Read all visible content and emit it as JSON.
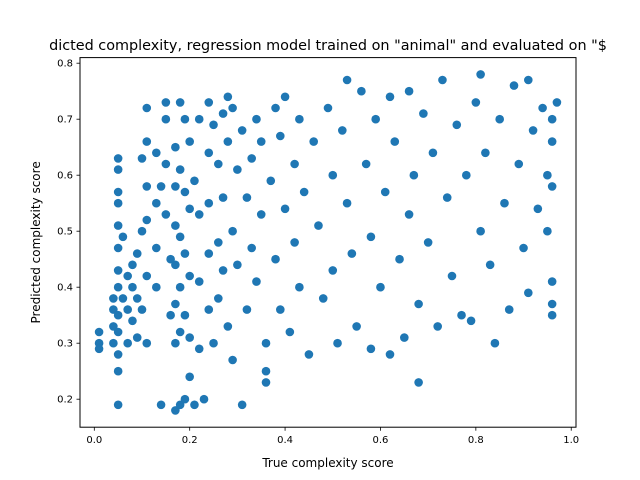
{
  "chart_data": {
    "type": "scatter",
    "title": "dicted complexity, regression model trained on \"animal\" and evaluated on \"$",
    "xlabel": "True complexity score",
    "ylabel": "Predicted complexity score",
    "xlim": [
      -0.03,
      1.01
    ],
    "ylim": [
      0.15,
      0.81
    ],
    "xticks": [
      0.0,
      0.2,
      0.4,
      0.6,
      0.8,
      1.0
    ],
    "xtick_labels": [
      "0.0",
      "0.2",
      "0.4",
      "0.6",
      "0.8",
      "1.0"
    ],
    "yticks": [
      0.2,
      0.3,
      0.4,
      0.5,
      0.6,
      0.7,
      0.8
    ],
    "ytick_labels": [
      "0.2",
      "0.3",
      "0.4",
      "0.5",
      "0.6",
      "0.7",
      "0.8"
    ],
    "grid": false,
    "legend": false,
    "marker_color": "#1f77b4",
    "series": [
      {
        "points": [
          [
            0.01,
            0.32
          ],
          [
            0.01,
            0.3
          ],
          [
            0.01,
            0.29
          ],
          [
            0.04,
            0.38
          ],
          [
            0.04,
            0.36
          ],
          [
            0.04,
            0.33
          ],
          [
            0.04,
            0.3
          ],
          [
            0.05,
            0.63
          ],
          [
            0.05,
            0.61
          ],
          [
            0.05,
            0.57
          ],
          [
            0.05,
            0.55
          ],
          [
            0.05,
            0.51
          ],
          [
            0.05,
            0.47
          ],
          [
            0.05,
            0.43
          ],
          [
            0.05,
            0.4
          ],
          [
            0.05,
            0.35
          ],
          [
            0.05,
            0.32
          ],
          [
            0.05,
            0.28
          ],
          [
            0.05,
            0.25
          ],
          [
            0.05,
            0.19
          ],
          [
            0.06,
            0.49
          ],
          [
            0.06,
            0.38
          ],
          [
            0.07,
            0.42
          ],
          [
            0.07,
            0.36
          ],
          [
            0.07,
            0.3
          ],
          [
            0.08,
            0.44
          ],
          [
            0.08,
            0.4
          ],
          [
            0.08,
            0.34
          ],
          [
            0.09,
            0.38
          ],
          [
            0.09,
            0.31
          ],
          [
            0.09,
            0.46
          ],
          [
            0.1,
            0.63
          ],
          [
            0.1,
            0.5
          ],
          [
            0.1,
            0.36
          ],
          [
            0.11,
            0.72
          ],
          [
            0.11,
            0.66
          ],
          [
            0.11,
            0.58
          ],
          [
            0.11,
            0.52
          ],
          [
            0.11,
            0.42
          ],
          [
            0.11,
            0.3
          ],
          [
            0.13,
            0.64
          ],
          [
            0.13,
            0.55
          ],
          [
            0.13,
            0.47
          ],
          [
            0.13,
            0.4
          ],
          [
            0.14,
            0.19
          ],
          [
            0.14,
            0.58
          ],
          [
            0.15,
            0.73
          ],
          [
            0.15,
            0.7
          ],
          [
            0.15,
            0.62
          ],
          [
            0.15,
            0.53
          ],
          [
            0.16,
            0.45
          ],
          [
            0.16,
            0.35
          ],
          [
            0.17,
            0.65
          ],
          [
            0.17,
            0.58
          ],
          [
            0.17,
            0.51
          ],
          [
            0.17,
            0.44
          ],
          [
            0.17,
            0.37
          ],
          [
            0.17,
            0.3
          ],
          [
            0.17,
            0.18
          ],
          [
            0.18,
            0.73
          ],
          [
            0.18,
            0.61
          ],
          [
            0.18,
            0.49
          ],
          [
            0.18,
            0.4
          ],
          [
            0.18,
            0.32
          ],
          [
            0.18,
            0.19
          ],
          [
            0.19,
            0.7
          ],
          [
            0.19,
            0.57
          ],
          [
            0.19,
            0.46
          ],
          [
            0.19,
            0.35
          ],
          [
            0.19,
            0.2
          ],
          [
            0.2,
            0.66
          ],
          [
            0.2,
            0.54
          ],
          [
            0.2,
            0.42
          ],
          [
            0.2,
            0.31
          ],
          [
            0.2,
            0.24
          ],
          [
            0.21,
            0.59
          ],
          [
            0.21,
            0.19
          ],
          [
            0.22,
            0.7
          ],
          [
            0.22,
            0.53
          ],
          [
            0.22,
            0.41
          ],
          [
            0.22,
            0.29
          ],
          [
            0.23,
            0.2
          ],
          [
            0.24,
            0.73
          ],
          [
            0.24,
            0.64
          ],
          [
            0.24,
            0.55
          ],
          [
            0.24,
            0.46
          ],
          [
            0.24,
            0.36
          ],
          [
            0.25,
            0.69
          ],
          [
            0.25,
            0.3
          ],
          [
            0.26,
            0.62
          ],
          [
            0.26,
            0.48
          ],
          [
            0.26,
            0.38
          ],
          [
            0.27,
            0.71
          ],
          [
            0.27,
            0.56
          ],
          [
            0.27,
            0.43
          ],
          [
            0.28,
            0.74
          ],
          [
            0.28,
            0.66
          ],
          [
            0.28,
            0.33
          ],
          [
            0.29,
            0.72
          ],
          [
            0.29,
            0.5
          ],
          [
            0.29,
            0.27
          ],
          [
            0.3,
            0.61
          ],
          [
            0.3,
            0.44
          ],
          [
            0.31,
            0.19
          ],
          [
            0.31,
            0.68
          ],
          [
            0.32,
            0.56
          ],
          [
            0.32,
            0.36
          ],
          [
            0.33,
            0.63
          ],
          [
            0.33,
            0.47
          ],
          [
            0.34,
            0.7
          ],
          [
            0.34,
            0.41
          ],
          [
            0.35,
            0.66
          ],
          [
            0.35,
            0.53
          ],
          [
            0.36,
            0.3
          ],
          [
            0.36,
            0.25
          ],
          [
            0.36,
            0.23
          ],
          [
            0.37,
            0.59
          ],
          [
            0.38,
            0.72
          ],
          [
            0.38,
            0.45
          ],
          [
            0.39,
            0.67
          ],
          [
            0.39,
            0.36
          ],
          [
            0.4,
            0.74
          ],
          [
            0.4,
            0.54
          ],
          [
            0.41,
            0.32
          ],
          [
            0.42,
            0.62
          ],
          [
            0.42,
            0.48
          ],
          [
            0.43,
            0.7
          ],
          [
            0.43,
            0.4
          ],
          [
            0.44,
            0.57
          ],
          [
            0.45,
            0.28
          ],
          [
            0.46,
            0.66
          ],
          [
            0.47,
            0.51
          ],
          [
            0.48,
            0.38
          ],
          [
            0.49,
            0.72
          ],
          [
            0.5,
            0.6
          ],
          [
            0.5,
            0.43
          ],
          [
            0.51,
            0.3
          ],
          [
            0.52,
            0.68
          ],
          [
            0.53,
            0.77
          ],
          [
            0.53,
            0.55
          ],
          [
            0.54,
            0.46
          ],
          [
            0.55,
            0.33
          ],
          [
            0.56,
            0.75
          ],
          [
            0.57,
            0.62
          ],
          [
            0.58,
            0.29
          ],
          [
            0.58,
            0.49
          ],
          [
            0.59,
            0.7
          ],
          [
            0.6,
            0.4
          ],
          [
            0.61,
            0.57
          ],
          [
            0.62,
            0.74
          ],
          [
            0.62,
            0.28
          ],
          [
            0.63,
            0.66
          ],
          [
            0.64,
            0.45
          ],
          [
            0.65,
            0.31
          ],
          [
            0.66,
            0.75
          ],
          [
            0.66,
            0.53
          ],
          [
            0.67,
            0.6
          ],
          [
            0.68,
            0.37
          ],
          [
            0.68,
            0.23
          ],
          [
            0.69,
            0.71
          ],
          [
            0.7,
            0.48
          ],
          [
            0.71,
            0.64
          ],
          [
            0.72,
            0.33
          ],
          [
            0.73,
            0.77
          ],
          [
            0.74,
            0.56
          ],
          [
            0.75,
            0.42
          ],
          [
            0.76,
            0.69
          ],
          [
            0.77,
            0.35
          ],
          [
            0.78,
            0.6
          ],
          [
            0.79,
            0.34
          ],
          [
            0.8,
            0.73
          ],
          [
            0.81,
            0.5
          ],
          [
            0.81,
            0.78
          ],
          [
            0.82,
            0.64
          ],
          [
            0.83,
            0.44
          ],
          [
            0.84,
            0.3
          ],
          [
            0.85,
            0.7
          ],
          [
            0.86,
            0.55
          ],
          [
            0.87,
            0.36
          ],
          [
            0.88,
            0.76
          ],
          [
            0.89,
            0.62
          ],
          [
            0.9,
            0.47
          ],
          [
            0.91,
            0.77
          ],
          [
            0.91,
            0.39
          ],
          [
            0.92,
            0.68
          ],
          [
            0.93,
            0.54
          ],
          [
            0.94,
            0.72
          ],
          [
            0.95,
            0.6
          ],
          [
            0.95,
            0.5
          ],
          [
            0.96,
            0.7
          ],
          [
            0.96,
            0.66
          ],
          [
            0.96,
            0.58
          ],
          [
            0.96,
            0.41
          ],
          [
            0.96,
            0.37
          ],
          [
            0.96,
            0.35
          ],
          [
            0.97,
            0.73
          ]
        ]
      }
    ]
  }
}
